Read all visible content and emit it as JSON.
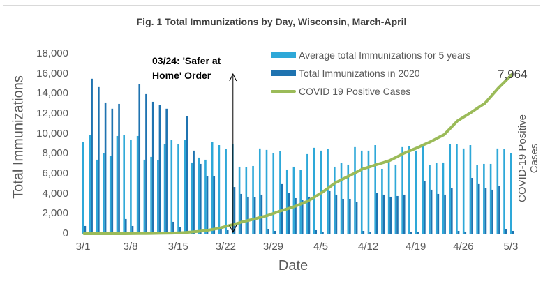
{
  "chart_data": {
    "type": "bar",
    "title": "Fig. 1 Total Immunizations by Day, Wisconsin, March-April",
    "xlabel": "Date",
    "ylabel": "Total Immunizations",
    "y2label": "COVID-19 Positive Cases",
    "ylim": [
      0,
      18000
    ],
    "y2lim": [
      0,
      9000
    ],
    "yticks": [
      "0",
      "2,000",
      "4,000",
      "6,000",
      "8,000",
      "10,000",
      "12,000",
      "14,000",
      "16,000",
      "18,000"
    ],
    "xtick_labels": [
      "3/1",
      "3/8",
      "3/15",
      "3/22",
      "3/29",
      "4/5",
      "4/12",
      "4/19",
      "4/26",
      "5/3"
    ],
    "grid": false,
    "legend_position": "top-right",
    "categories": [
      "3/1",
      "3/2",
      "3/3",
      "3/4",
      "3/5",
      "3/6",
      "3/7",
      "3/8",
      "3/9",
      "3/10",
      "3/11",
      "3/12",
      "3/13",
      "3/14",
      "3/15",
      "3/16",
      "3/17",
      "3/18",
      "3/19",
      "3/20",
      "3/21",
      "3/22",
      "3/23",
      "3/24",
      "3/25",
      "3/26",
      "3/27",
      "3/28",
      "3/29",
      "3/30",
      "3/31",
      "4/1",
      "4/2",
      "4/3",
      "4/4",
      "4/5",
      "4/6",
      "4/7",
      "4/8",
      "4/9",
      "4/10",
      "4/11",
      "4/12",
      "4/13",
      "4/14",
      "4/15",
      "4/16",
      "4/17",
      "4/18",
      "4/19",
      "4/20",
      "4/21",
      "4/22",
      "4/23",
      "4/24",
      "4/25",
      "4/26",
      "4/27",
      "4/28",
      "4/29",
      "4/30",
      "5/1",
      "5/2",
      "5/3"
    ],
    "series": [
      {
        "name": "Average total Immunizations for 5 years",
        "type": "bar",
        "axis": "primary",
        "color": "#2ea8d8",
        "values": [
          9200,
          9840,
          7400,
          8030,
          7750,
          9770,
          9840,
          9420,
          9770,
          7400,
          7680,
          7330,
          8930,
          9350,
          8930,
          9350,
          7120,
          7610,
          7400,
          9140,
          8860,
          8510,
          9000,
          6700,
          6630,
          6770,
          8520,
          8380,
          8030,
          8240,
          6420,
          6700,
          6350,
          7960,
          8590,
          8310,
          8450,
          6700,
          7050,
          6910,
          8660,
          8310,
          8310,
          8860,
          6490,
          7330,
          6910,
          8660,
          8730,
          8310,
          8800,
          6840,
          7050,
          7120,
          9000,
          9000,
          8520,
          8860,
          6840,
          6980,
          6980,
          8520,
          8450,
          8030
        ]
      },
      {
        "name": "Total Immunizations in 2020",
        "type": "bar",
        "axis": "primary",
        "color": "#1f73b0",
        "values": [
          770,
          15500,
          14660,
          13120,
          12500,
          12980,
          1470,
          770,
          14940,
          13960,
          13190,
          12840,
          12500,
          1190,
          630,
          11730,
          8310,
          6980,
          5790,
          5720,
          420,
          350,
          4670,
          3980,
          3700,
          3630,
          3910,
          420,
          280,
          4960,
          4050,
          3560,
          3350,
          3700,
          350,
          210,
          4260,
          3910,
          3490,
          3490,
          3210,
          280,
          140,
          4050,
          3910,
          3700,
          3770,
          3910,
          210,
          140,
          5300,
          4400,
          3980,
          3910,
          4540,
          280,
          210,
          5580,
          4960,
          4540,
          4400,
          4750,
          420,
          280
        ]
      },
      {
        "name": "COVID 19 Positive Cases",
        "type": "line",
        "axis": "secondary",
        "color": "#9bbb59",
        "values": [
          0,
          0,
          0,
          0,
          0,
          0,
          0,
          5,
          8,
          10,
          15,
          20,
          25,
          30,
          45,
          60,
          90,
          120,
          160,
          220,
          280,
          380,
          460,
          560,
          650,
          730,
          820,
          910,
          1030,
          1150,
          1250,
          1360,
          1500,
          1640,
          1850,
          2060,
          2300,
          2550,
          2720,
          2890,
          3060,
          3240,
          3340,
          3450,
          3550,
          3660,
          3830,
          4010,
          4150,
          4290,
          4450,
          4600,
          4780,
          4950,
          5300,
          5650,
          5860,
          6070,
          6300,
          6520,
          6900,
          7290,
          7620,
          7964
        ]
      }
    ],
    "annotations": [
      {
        "text": "03/24: 'Safer at Home' Order",
        "x": "3/24",
        "type": "arrow"
      },
      {
        "text": "7,964",
        "x": "5/3",
        "series": "COVID 19 Positive Cases"
      }
    ]
  },
  "labels": {
    "annot_line1": "03/24: 'Safer at",
    "annot_line2": "Home' Order",
    "end_label": "7,964"
  }
}
